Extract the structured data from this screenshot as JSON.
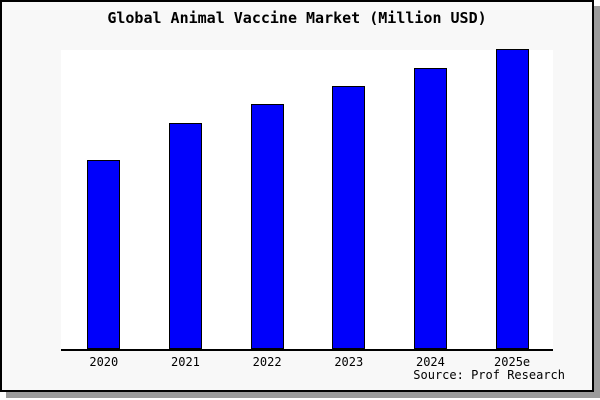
{
  "title": "Global Animal Vaccine Market (Million USD)",
  "source": "Source: Prof Research",
  "colors": {
    "card_background": "#f8f8f8",
    "plot_background": "#ffffff",
    "bar_fill": "#0000fb",
    "bar_border": "#000000",
    "frame_border": "#000000",
    "frame_shadow": "#9b9b9b",
    "text": "#000000"
  },
  "chart_data": {
    "type": "bar",
    "title": "Global Animal Vaccine Market (Million USD)",
    "categories": [
      "2020",
      "2021",
      "2022",
      "2023",
      "2024",
      "2025e"
    ],
    "values": [
      63,
      75.2,
      81.6,
      87.6,
      93.7,
      100
    ],
    "value_note": "No y-axis or data labels shown; values are relative bar heights with 2025e normalized to 100",
    "xlabel": "",
    "ylabel": "",
    "ylim": [
      0,
      100
    ],
    "grid": false,
    "legend": false,
    "annotations": [
      "Source: Prof Research"
    ]
  }
}
